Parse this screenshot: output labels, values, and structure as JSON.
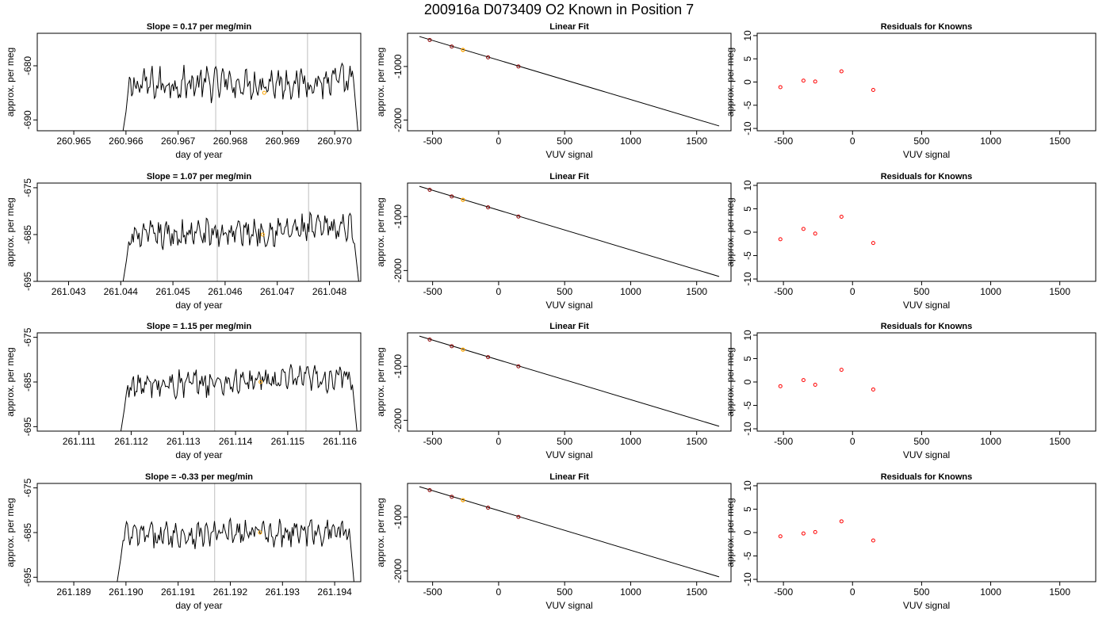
{
  "figure_title": "200916a      D073409    O2 Known in Position  7",
  "colors": {
    "trace": "#000000",
    "vline": "#bebebe",
    "highlight": "#ffa500",
    "known_point": "#8b0000",
    "residual_point": "#ff0000",
    "frame": "#000000"
  },
  "chart_data": [
    {
      "type": "line",
      "panel": "trace",
      "row": 0,
      "title": "Slope =  0.17  per meg/min",
      "xlabel": "day of year",
      "ylabel": "approx. per meg",
      "xlim": [
        260.9643,
        260.9705
      ],
      "ylim": [
        -692,
        -674
      ],
      "xticks": [
        "260.965",
        "260.966",
        "260.967",
        "260.968",
        "260.969",
        "260.970"
      ],
      "xtick_values": [
        260.965,
        260.966,
        260.967,
        260.968,
        260.969,
        260.97
      ],
      "yticks": [
        "-690",
        "-680"
      ],
      "ytick_values": [
        -690,
        -680
      ],
      "start": 260.96588,
      "end": 260.97048,
      "baseline": -683.5,
      "trend": 0.6,
      "vlines": [
        260.96772,
        260.96948
      ],
      "highlight_point": [
        260.96865,
        -685
      ]
    },
    {
      "type": "scatter",
      "panel": "fit",
      "row": 0,
      "title": "Linear Fit",
      "xlabel": "VUV signal",
      "ylabel": "approx. per meg",
      "xlim": [
        -690,
        1760
      ],
      "ylim": [
        -2200,
        -380
      ],
      "xticks": [
        "-500",
        "0",
        "500",
        "1000",
        "1500"
      ],
      "xtick_values": [
        -500,
        0,
        500,
        1000,
        1500
      ],
      "yticks": [
        "-2000",
        "-1000"
      ],
      "ytick_values": [
        -2000,
        -1000
      ],
      "fit_line": {
        "x": [
          -600,
          1670
        ],
        "y": [
          -440,
          -2110
        ]
      },
      "points": [
        {
          "x": -522,
          "y": -505
        },
        {
          "x": -355,
          "y": -628
        },
        {
          "x": -80,
          "y": -830
        },
        {
          "x": 150,
          "y": -1000
        }
      ],
      "highlight_point": {
        "x": -270,
        "y": -690
      }
    },
    {
      "type": "scatter",
      "panel": "residuals",
      "row": 0,
      "title": "Residuals for Knowns",
      "xlabel": "VUV signal",
      "ylabel": "approx. per meg",
      "xlim": [
        -690,
        1760
      ],
      "ylim": [
        -10.5,
        10.5
      ],
      "xticks": [
        "-500",
        "0",
        "500",
        "1000",
        "1500"
      ],
      "xtick_values": [
        -500,
        0,
        500,
        1000,
        1500
      ],
      "yticks": [
        "-10",
        "-5",
        "0",
        "5",
        "10"
      ],
      "ytick_values": [
        -10,
        -5,
        0,
        5,
        10
      ],
      "points": [
        {
          "x": -522,
          "y": -1.1
        },
        {
          "x": -355,
          "y": 0.3
        },
        {
          "x": -270,
          "y": 0.1
        },
        {
          "x": -80,
          "y": 2.3
        },
        {
          "x": 150,
          "y": -1.7
        }
      ]
    },
    {
      "type": "line",
      "panel": "trace",
      "row": 1,
      "title": "Slope =  1.07  per meg/min",
      "xlabel": "day of year",
      "ylabel": "approx. per meg",
      "xlim": [
        261.0424,
        261.0486
      ],
      "ylim": [
        -695,
        -674
      ],
      "xticks": [
        "261.043",
        "261.044",
        "261.045",
        "261.046",
        "261.047",
        "261.048"
      ],
      "xtick_values": [
        261.043,
        261.044,
        261.045,
        261.046,
        261.047,
        261.048
      ],
      "yticks": [
        "-695",
        "-685",
        "-675"
      ],
      "ytick_values": [
        -695,
        -685,
        -675
      ],
      "start": 261.04399,
      "end": 261.0486,
      "baseline": -685.5,
      "trend": 2.0,
      "vlines": [
        261.04585,
        261.0476
      ],
      "highlight_point": [
        261.04672,
        -685
      ]
    },
    {
      "type": "scatter",
      "panel": "fit",
      "row": 1,
      "title": "Linear Fit",
      "xlabel": "VUV signal",
      "ylabel": "approx. per meg",
      "xlim": [
        -690,
        1760
      ],
      "ylim": [
        -2200,
        -380
      ],
      "xticks": [
        "-500",
        "0",
        "500",
        "1000",
        "1500"
      ],
      "xtick_values": [
        -500,
        0,
        500,
        1000,
        1500
      ],
      "yticks": [
        "-2000",
        "-1000"
      ],
      "ytick_values": [
        -2000,
        -1000
      ],
      "fit_line": {
        "x": [
          -600,
          1670
        ],
        "y": [
          -440,
          -2110
        ]
      },
      "points": [
        {
          "x": -522,
          "y": -505
        },
        {
          "x": -355,
          "y": -628
        },
        {
          "x": -80,
          "y": -830
        },
        {
          "x": 150,
          "y": -1000
        }
      ],
      "highlight_point": {
        "x": -270,
        "y": -690
      }
    },
    {
      "type": "scatter",
      "panel": "residuals",
      "row": 1,
      "title": "Residuals for Knowns",
      "xlabel": "VUV signal",
      "ylabel": "approx. per meg",
      "xlim": [
        -690,
        1760
      ],
      "ylim": [
        -10.5,
        10.5
      ],
      "xticks": [
        "-500",
        "0",
        "500",
        "1000",
        "1500"
      ],
      "xtick_values": [
        -500,
        0,
        500,
        1000,
        1500
      ],
      "yticks": [
        "-10",
        "-5",
        "0",
        "5",
        "10"
      ],
      "ytick_values": [
        -10,
        -5,
        0,
        5,
        10
      ],
      "points": [
        {
          "x": -522,
          "y": -1.5
        },
        {
          "x": -355,
          "y": 0.7
        },
        {
          "x": -270,
          "y": -0.3
        },
        {
          "x": -80,
          "y": 3.3
        },
        {
          "x": 150,
          "y": -2.3
        }
      ]
    },
    {
      "type": "line",
      "panel": "trace",
      "row": 2,
      "title": "Slope =  1.15  per meg/min",
      "xlabel": "day of year",
      "ylabel": "approx. per meg",
      "xlim": [
        261.1102,
        261.1164
      ],
      "ylim": [
        -696,
        -674
      ],
      "xticks": [
        "261.111",
        "261.112",
        "261.113",
        "261.114",
        "261.115",
        "261.116"
      ],
      "xtick_values": [
        261.111,
        261.112,
        261.113,
        261.114,
        261.115,
        261.116
      ],
      "yticks": [
        "-695",
        "-685",
        "-675"
      ],
      "ytick_values": [
        -695,
        -685,
        -675
      ],
      "start": 261.11175,
      "end": 261.11636,
      "baseline": -686.0,
      "trend": 2.0,
      "vlines": [
        261.1136,
        261.11535
      ],
      "highlight_point": [
        261.11448,
        -685
      ]
    },
    {
      "type": "scatter",
      "panel": "fit",
      "row": 2,
      "title": "Linear Fit",
      "xlabel": "VUV signal",
      "ylabel": "approx. per meg",
      "xlim": [
        -690,
        1760
      ],
      "ylim": [
        -2200,
        -380
      ],
      "xticks": [
        "-500",
        "0",
        "500",
        "1000",
        "1500"
      ],
      "xtick_values": [
        -500,
        0,
        500,
        1000,
        1500
      ],
      "yticks": [
        "-2000",
        "-1000"
      ],
      "ytick_values": [
        -2000,
        -1000
      ],
      "fit_line": {
        "x": [
          -600,
          1670
        ],
        "y": [
          -440,
          -2110
        ]
      },
      "points": [
        {
          "x": -522,
          "y": -505
        },
        {
          "x": -355,
          "y": -628
        },
        {
          "x": -80,
          "y": -830
        },
        {
          "x": 150,
          "y": -1000
        }
      ],
      "highlight_point": {
        "x": -270,
        "y": -690
      }
    },
    {
      "type": "scatter",
      "panel": "residuals",
      "row": 2,
      "title": "Residuals for Knowns",
      "xlabel": "VUV signal",
      "ylabel": "approx. per meg",
      "xlim": [
        -690,
        1760
      ],
      "ylim": [
        -10.5,
        10.5
      ],
      "xticks": [
        "-500",
        "0",
        "500",
        "1000",
        "1500"
      ],
      "xtick_values": [
        -500,
        0,
        500,
        1000,
        1500
      ],
      "yticks": [
        "-10",
        "-5",
        "0",
        "5",
        "10"
      ],
      "ytick_values": [
        -10,
        -5,
        0,
        5,
        10
      ],
      "points": [
        {
          "x": -522,
          "y": -0.9
        },
        {
          "x": -355,
          "y": 0.4
        },
        {
          "x": -270,
          "y": -0.6
        },
        {
          "x": -80,
          "y": 2.6
        },
        {
          "x": 150,
          "y": -1.6
        }
      ]
    },
    {
      "type": "line",
      "panel": "trace",
      "row": 3,
      "title": "Slope =  -0.33  per meg/min",
      "xlabel": "day of year",
      "ylabel": "approx. per meg",
      "xlim": [
        261.1883,
        261.1945
      ],
      "ylim": [
        -696,
        -674
      ],
      "xticks": [
        "261.189",
        "261.190",
        "261.191",
        "261.192",
        "261.193",
        "261.194"
      ],
      "xtick_values": [
        261.189,
        261.19,
        261.191,
        261.192,
        261.193,
        261.194
      ],
      "yticks": [
        "-695",
        "-685",
        "-675"
      ],
      "ytick_values": [
        -695,
        -685,
        -675
      ],
      "start": 261.18978,
      "end": 261.1944,
      "baseline": -685.8,
      "trend": 1.2,
      "vlines": [
        261.1917,
        261.19345
      ],
      "highlight_point": [
        261.19257,
        -685
      ]
    },
    {
      "type": "scatter",
      "panel": "fit",
      "row": 3,
      "title": "Linear Fit",
      "xlabel": "VUV signal",
      "ylabel": "approx. per meg",
      "xlim": [
        -690,
        1760
      ],
      "ylim": [
        -2200,
        -380
      ],
      "xticks": [
        "-500",
        "0",
        "500",
        "1000",
        "1500"
      ],
      "xtick_values": [
        -500,
        0,
        500,
        1000,
        1500
      ],
      "yticks": [
        "-2000",
        "-1000"
      ],
      "ytick_values": [
        -2000,
        -1000
      ],
      "fit_line": {
        "x": [
          -600,
          1670
        ],
        "y": [
          -440,
          -2110
        ]
      },
      "points": [
        {
          "x": -522,
          "y": -505
        },
        {
          "x": -355,
          "y": -628
        },
        {
          "x": -80,
          "y": -830
        },
        {
          "x": 150,
          "y": -1000
        }
      ],
      "highlight_point": {
        "x": -270,
        "y": -690
      }
    },
    {
      "type": "scatter",
      "panel": "residuals",
      "row": 3,
      "title": "Residuals for Knowns",
      "xlabel": "VUV signal",
      "ylabel": "approx. per meg",
      "xlim": [
        -690,
        1760
      ],
      "ylim": [
        -10.5,
        10.5
      ],
      "xticks": [
        "-500",
        "0",
        "500",
        "1000",
        "1500"
      ],
      "xtick_values": [
        -500,
        0,
        500,
        1000,
        1500
      ],
      "yticks": [
        "-10",
        "-5",
        "0",
        "5",
        "10"
      ],
      "ytick_values": [
        -10,
        -5,
        0,
        5,
        10
      ],
      "points": [
        {
          "x": -522,
          "y": -0.8
        },
        {
          "x": -355,
          "y": -0.2
        },
        {
          "x": -270,
          "y": 0.1
        },
        {
          "x": -80,
          "y": 2.4
        },
        {
          "x": 150,
          "y": -1.7
        }
      ]
    }
  ]
}
